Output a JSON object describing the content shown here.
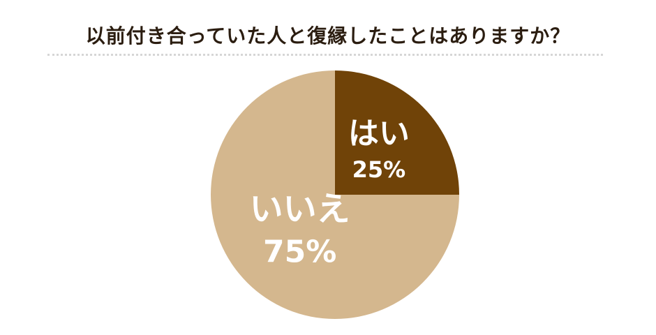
{
  "title": "以前付き合っていた人と復縁したことはありますか？",
  "colors": {
    "yes": "#704308",
    "no": "#d4b78e",
    "label": "#ffffff",
    "title": "#2b1d10"
  },
  "chart_data": {
    "type": "pie",
    "title": "以前付き合っていた人と復縁したことはありますか？",
    "series": [
      {
        "name": "はい",
        "value": 25,
        "value_label": "25%"
      },
      {
        "name": "いいえ",
        "value": 75,
        "value_label": "75%"
      }
    ],
    "start": "12 o'clock",
    "direction": "clockwise",
    "legend": "none (labels inside slices)"
  }
}
